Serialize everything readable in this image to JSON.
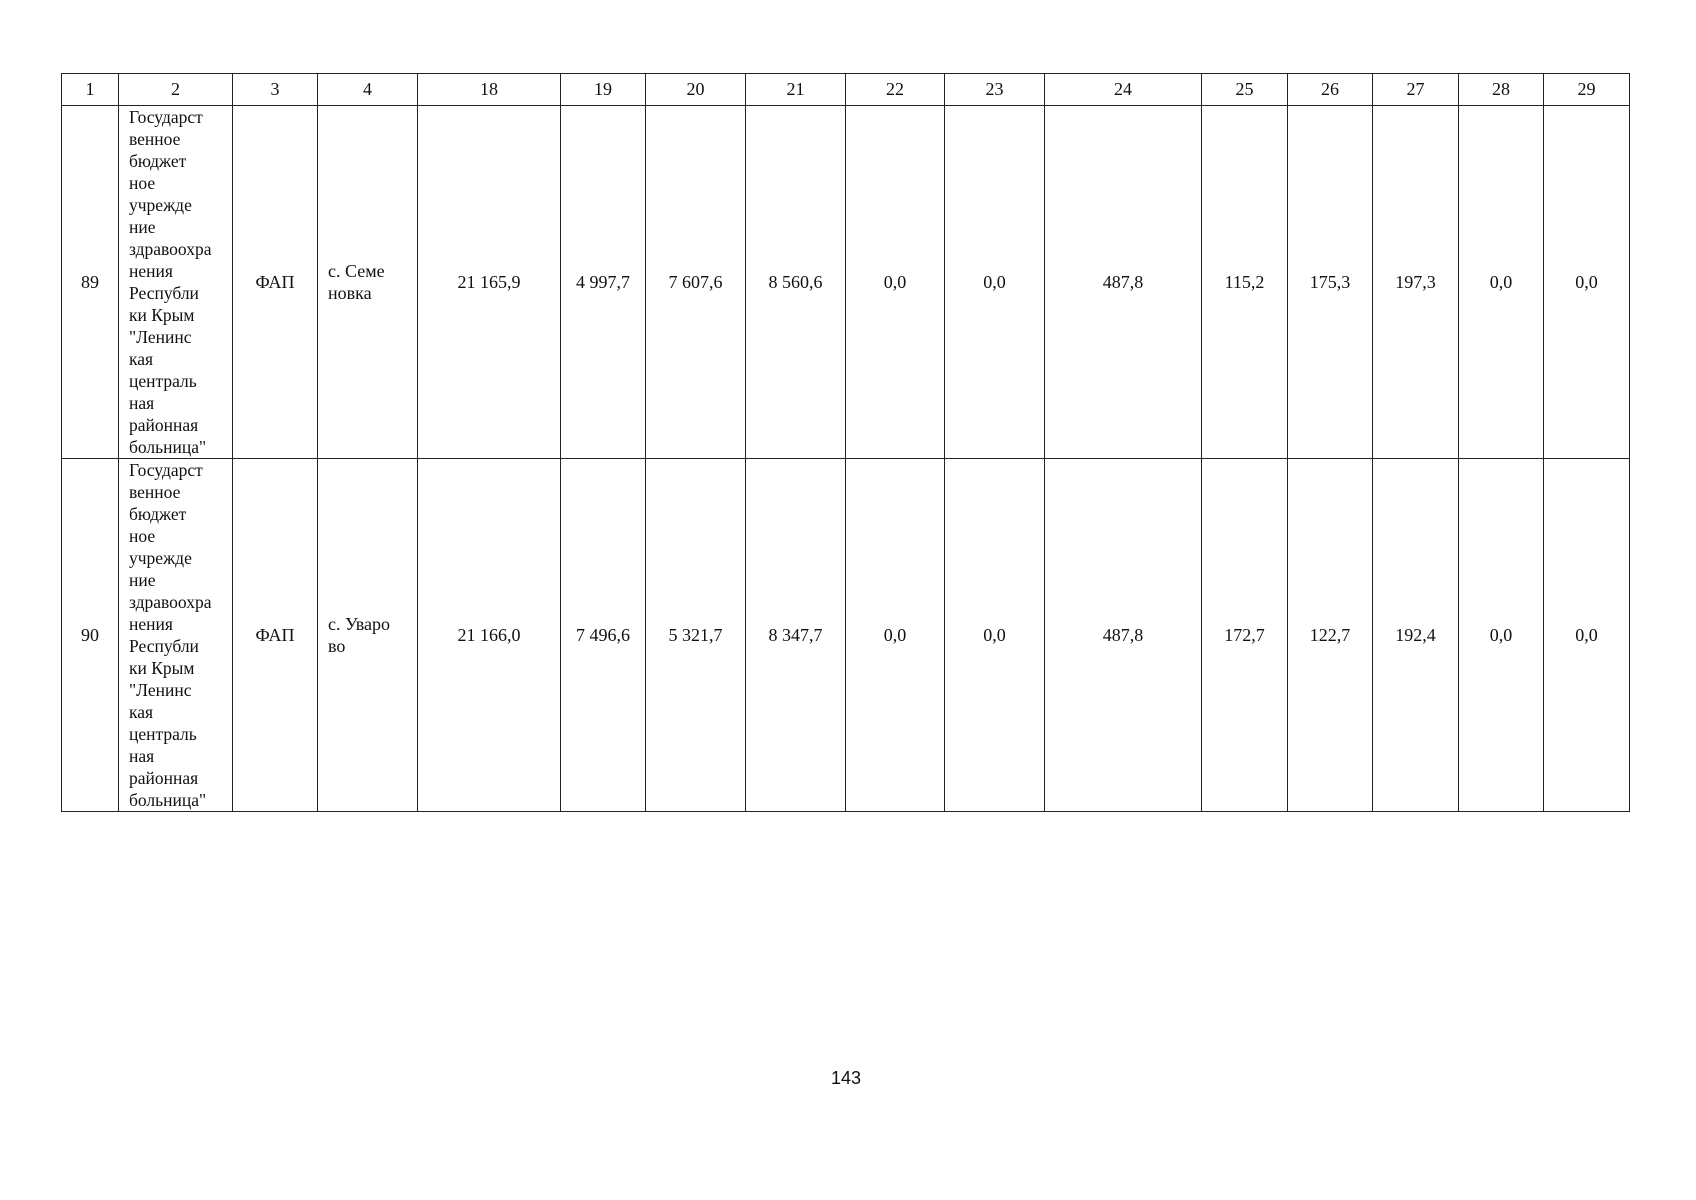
{
  "table": {
    "headers": [
      "1",
      "2",
      "3",
      "4",
      "18",
      "19",
      "20",
      "21",
      "22",
      "23",
      "24",
      "25",
      "26",
      "27",
      "28",
      "29"
    ],
    "rows": [
      {
        "num": "89",
        "org": "Государст\nвенное\nбюджет\nное\nучрежде\nние\nздравоохра\nнения\nРеспубли\nки Крым\n\"Ленинс\nкая\nцентраль\nная\nрайонная\nбольница\"",
        "type": "ФАП",
        "location": "с. Семе\nновка",
        "values": [
          "21 165,9",
          "4 997,7",
          "7 607,6",
          "8 560,6",
          "0,0",
          "0,0",
          "487,8",
          "115,2",
          "175,3",
          "197,3",
          "0,0",
          "0,0"
        ]
      },
      {
        "num": "90",
        "org": "Государст\nвенное\nбюджет\nное\nучрежде\nние\nздравоохра\nнения\nРеспубли\nки Крым\n\"Ленинс\nкая\nцентраль\nная\nрайонная\nбольница\"",
        "type": "ФАП",
        "location": "с. Уваро\nво",
        "values": [
          "21 166,0",
          "7 496,6",
          "5 321,7",
          "8 347,7",
          "0,0",
          "0,0",
          "487,8",
          "172,7",
          "122,7",
          "192,4",
          "0,0",
          "0,0"
        ]
      }
    ]
  },
  "page_number": "143"
}
